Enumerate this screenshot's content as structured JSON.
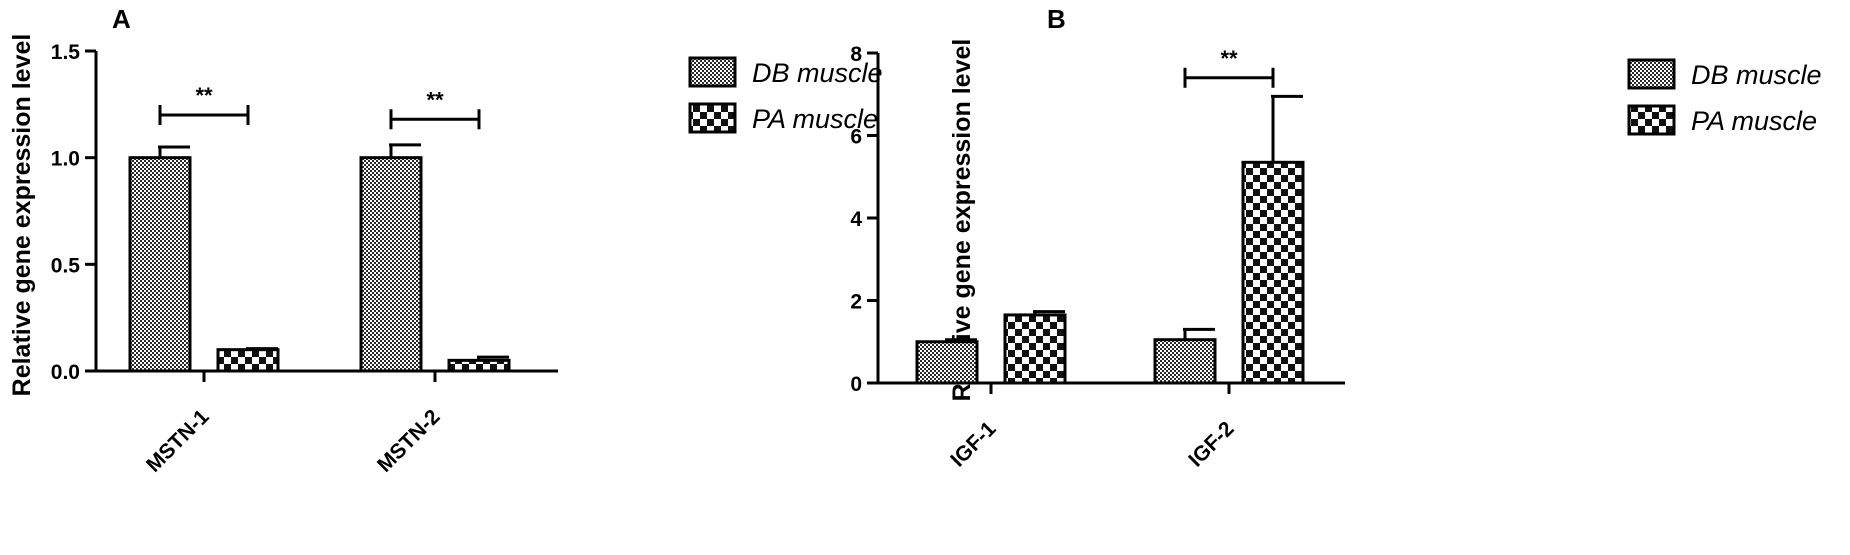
{
  "chart_data": [
    {
      "type": "bar",
      "panel_label": "A",
      "ylabel": "Relative gene expression level",
      "xlabel": "",
      "ylim": [
        0,
        1.5
      ],
      "yticks": [
        0.0,
        0.5,
        1.0,
        1.5
      ],
      "ytick_labels": [
        "0.0",
        "0.5",
        "1.0",
        "1.5"
      ],
      "categories": [
        "MSTN-1",
        "MSTN-2"
      ],
      "series": [
        {
          "name": "DB muscle",
          "values": [
            1.0,
            1.0
          ],
          "errors": [
            0.05,
            0.06
          ],
          "pattern": "fine"
        },
        {
          "name": "PA muscle",
          "values": [
            0.1,
            0.05
          ],
          "errors": [
            0.005,
            0.015
          ],
          "pattern": "checker"
        }
      ],
      "significance": [
        {
          "category": 0,
          "label": "**",
          "y": 1.2
        },
        {
          "category": 1,
          "label": "**",
          "y": 1.18
        }
      ],
      "legend": "right"
    },
    {
      "type": "bar",
      "panel_label": "B",
      "ylabel": "Relative gene expression level",
      "xlabel": "",
      "ylim": [
        0,
        8
      ],
      "yticks": [
        0,
        2,
        4,
        6,
        8
      ],
      "ytick_labels": [
        "0",
        "2",
        "4",
        "6",
        "8"
      ],
      "categories": [
        "IGF-1",
        "IGF-2"
      ],
      "series": [
        {
          "name": "DB muscle",
          "values": [
            1.0,
            1.05
          ],
          "errors": [
            0.05,
            0.25
          ],
          "pattern": "fine"
        },
        {
          "name": "PA muscle",
          "values": [
            1.65,
            5.35
          ],
          "errors": [
            0.08,
            1.6
          ],
          "pattern": "checker"
        }
      ],
      "significance": [
        {
          "category": 1,
          "label": "**",
          "y": 7.4
        }
      ],
      "legend": "right"
    }
  ]
}
